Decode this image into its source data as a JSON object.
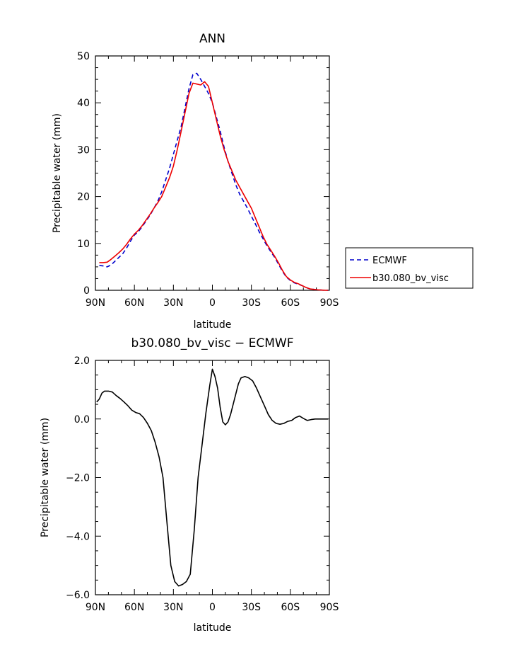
{
  "chart_data": [
    {
      "type": "line",
      "title": "ANN",
      "xlabel": "latitude",
      "ylabel": "Precipitable water (mm)",
      "xlim": [
        90,
        -90
      ],
      "ylim": [
        0,
        50
      ],
      "x_ticks": [
        90,
        60,
        30,
        0,
        -30,
        -60,
        -90
      ],
      "x_tick_labels": [
        "90N",
        "60N",
        "30N",
        "0",
        "30S",
        "60S",
        "90S"
      ],
      "y_ticks": [
        0,
        10,
        20,
        30,
        40,
        50
      ],
      "y_tick_labels": [
        "0",
        "10",
        "20",
        "30",
        "40",
        "50"
      ],
      "grid": false,
      "legend": "right",
      "series": [
        {
          "name": "ECMWF",
          "color": "#0000cc",
          "dash": "dashed",
          "x": [
            87,
            84,
            81,
            78,
            75,
            72,
            69,
            66,
            63,
            60,
            57,
            54,
            51,
            48,
            45,
            42,
            39,
            36,
            33,
            30,
            27,
            24,
            21,
            18,
            15,
            12,
            9,
            6,
            3,
            0,
            -3,
            -6,
            -9,
            -12,
            -15,
            -18,
            -21,
            -24,
            -27,
            -30,
            -33,
            -36,
            -39,
            -42,
            -45,
            -48,
            -51,
            -54,
            -57,
            -60,
            -63,
            -66,
            -69,
            -72,
            -75,
            -78,
            -81,
            -84,
            -87,
            -89
          ],
          "y": [
            5.3,
            5.2,
            5.0,
            5.4,
            6.2,
            7.0,
            7.8,
            9.0,
            10.5,
            11.8,
            12.5,
            13.6,
            14.8,
            16.0,
            17.5,
            19.0,
            21.0,
            23.5,
            26.0,
            29.0,
            32.0,
            35.0,
            39.0,
            43.0,
            46.0,
            46.3,
            45.0,
            43.5,
            42.0,
            40.0,
            37.0,
            34.0,
            30.5,
            27.5,
            25.0,
            22.5,
            20.5,
            19.0,
            17.5,
            15.8,
            14.2,
            12.5,
            11.0,
            9.5,
            8.2,
            7.0,
            5.5,
            4.0,
            2.8,
            2.1,
            1.6,
            1.3,
            1.0,
            0.6,
            0.3,
            0.2,
            0.1,
            0.05,
            0.0,
            0.0
          ]
        },
        {
          "name": "b30.080_bv_visc",
          "color": "#ee0000",
          "dash": "solid",
          "x": [
            87,
            84,
            81,
            78,
            75,
            72,
            69,
            66,
            63,
            60,
            57,
            54,
            51,
            48,
            45,
            42,
            39,
            36,
            33,
            30,
            27,
            24,
            21,
            18,
            15,
            12,
            9,
            6,
            3,
            0,
            -3,
            -6,
            -9,
            -12,
            -15,
            -18,
            -21,
            -24,
            -27,
            -30,
            -33,
            -36,
            -39,
            -42,
            -45,
            -48,
            -51,
            -54,
            -57,
            -60,
            -63,
            -66,
            -69,
            -72,
            -75,
            -78,
            -81,
            -84,
            -87,
            -89
          ],
          "y": [
            5.9,
            5.9,
            6.0,
            6.6,
            7.3,
            8.0,
            8.8,
            9.8,
            11.0,
            12.0,
            12.8,
            13.8,
            15.0,
            16.2,
            17.5,
            18.7,
            20.0,
            22.0,
            24.0,
            26.5,
            30.0,
            34.0,
            38.0,
            42.0,
            44.2,
            44.0,
            43.8,
            44.5,
            43.5,
            40.0,
            36.5,
            33.0,
            30.0,
            27.5,
            25.5,
            23.5,
            22.0,
            20.5,
            19.0,
            17.5,
            15.5,
            13.5,
            11.5,
            9.8,
            8.5,
            7.2,
            5.8,
            4.2,
            2.9,
            2.2,
            1.7,
            1.4,
            1.0,
            0.6,
            0.3,
            0.2,
            0.1,
            0.05,
            0.0,
            0.0
          ]
        }
      ]
    },
    {
      "type": "line",
      "title": "b30.080_bv_visc − ECMWF",
      "xlabel": "latitude",
      "ylabel": "Precipitable water (mm)",
      "xlim": [
        90,
        -90
      ],
      "ylim": [
        -6,
        2
      ],
      "x_ticks": [
        90,
        60,
        30,
        0,
        -30,
        -60,
        -90
      ],
      "x_tick_labels": [
        "90N",
        "60N",
        "30N",
        "0",
        "30S",
        "60S",
        "90S"
      ],
      "y_ticks": [
        -6,
        -4,
        -2,
        0,
        2
      ],
      "y_tick_labels": [
        "−6.0",
        "−4.0",
        "−2.0",
        "0.0",
        "2.0"
      ],
      "grid": false,
      "legend": "none",
      "series": [
        {
          "color": "#000000",
          "dash": "solid",
          "x": [
            89,
            87,
            85,
            83,
            80,
            77,
            74,
            71,
            68,
            65,
            62,
            59,
            56,
            53,
            50,
            47,
            44,
            41,
            38,
            35,
            32,
            29,
            26,
            23,
            20,
            17,
            14,
            11,
            8,
            5,
            2,
            0,
            -2,
            -4,
            -6,
            -8,
            -10,
            -12,
            -14,
            -16,
            -18,
            -20,
            -22,
            -25,
            -28,
            -31,
            -34,
            -37,
            -40,
            -43,
            -46,
            -49,
            -52,
            -55,
            -58,
            -61,
            -64,
            -67,
            -70,
            -73,
            -76,
            -79,
            -82,
            -84,
            -86,
            -89
          ],
          "y": [
            0.58,
            0.68,
            0.88,
            0.95,
            0.95,
            0.92,
            0.8,
            0.7,
            0.58,
            0.45,
            0.3,
            0.22,
            0.18,
            0.05,
            -0.15,
            -0.4,
            -0.8,
            -1.3,
            -2.0,
            -3.5,
            -5.0,
            -5.55,
            -5.7,
            -5.65,
            -5.55,
            -5.3,
            -3.8,
            -2.0,
            -0.9,
            0.2,
            1.15,
            1.7,
            1.45,
            1.05,
            0.4,
            -0.1,
            -0.2,
            -0.1,
            0.15,
            0.5,
            0.85,
            1.2,
            1.4,
            1.45,
            1.4,
            1.3,
            1.05,
            0.75,
            0.45,
            0.15,
            -0.05,
            -0.15,
            -0.18,
            -0.15,
            -0.08,
            -0.05,
            0.05,
            0.1,
            0.02,
            -0.05,
            -0.02,
            0.0,
            0.0,
            0.0,
            0.0,
            0.0
          ]
        }
      ]
    }
  ]
}
